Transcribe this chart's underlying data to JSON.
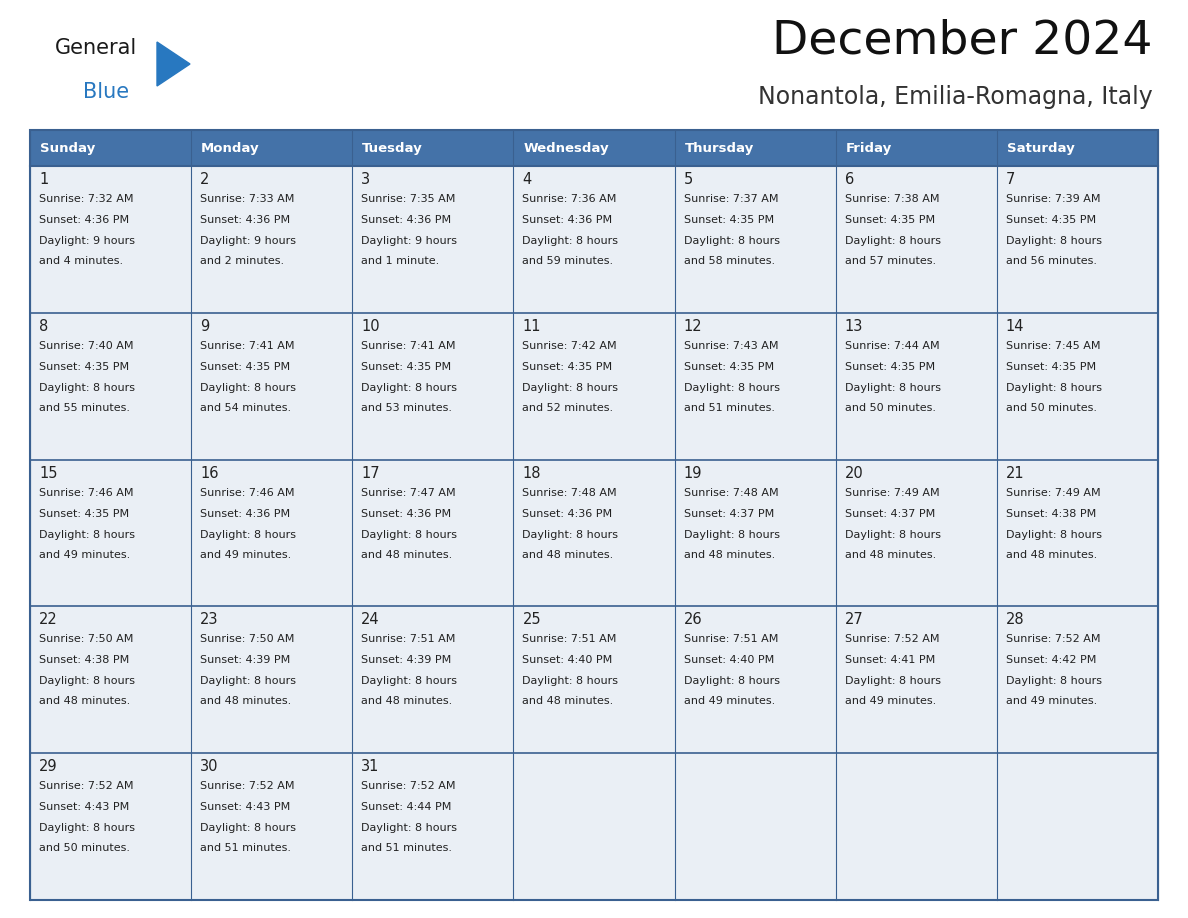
{
  "title": "December 2024",
  "subtitle": "Nonantola, Emilia-Romagna, Italy",
  "header_color": "#4472a8",
  "header_text_color": "#ffffff",
  "cell_bg_color": "#eaeff5",
  "border_color": "#3a6090",
  "text_color": "#222222",
  "days_of_week": [
    "Sunday",
    "Monday",
    "Tuesday",
    "Wednesday",
    "Thursday",
    "Friday",
    "Saturday"
  ],
  "weeks": [
    [
      {
        "day": "1",
        "sunrise": "7:32 AM",
        "sunset": "4:36 PM",
        "daylight1": "9 hours",
        "daylight2": "and 4 minutes."
      },
      {
        "day": "2",
        "sunrise": "7:33 AM",
        "sunset": "4:36 PM",
        "daylight1": "9 hours",
        "daylight2": "and 2 minutes."
      },
      {
        "day": "3",
        "sunrise": "7:35 AM",
        "sunset": "4:36 PM",
        "daylight1": "9 hours",
        "daylight2": "and 1 minute."
      },
      {
        "day": "4",
        "sunrise": "7:36 AM",
        "sunset": "4:36 PM",
        "daylight1": "8 hours",
        "daylight2": "and 59 minutes."
      },
      {
        "day": "5",
        "sunrise": "7:37 AM",
        "sunset": "4:35 PM",
        "daylight1": "8 hours",
        "daylight2": "and 58 minutes."
      },
      {
        "day": "6",
        "sunrise": "7:38 AM",
        "sunset": "4:35 PM",
        "daylight1": "8 hours",
        "daylight2": "and 57 minutes."
      },
      {
        "day": "7",
        "sunrise": "7:39 AM",
        "sunset": "4:35 PM",
        "daylight1": "8 hours",
        "daylight2": "and 56 minutes."
      }
    ],
    [
      {
        "day": "8",
        "sunrise": "7:40 AM",
        "sunset": "4:35 PM",
        "daylight1": "8 hours",
        "daylight2": "and 55 minutes."
      },
      {
        "day": "9",
        "sunrise": "7:41 AM",
        "sunset": "4:35 PM",
        "daylight1": "8 hours",
        "daylight2": "and 54 minutes."
      },
      {
        "day": "10",
        "sunrise": "7:41 AM",
        "sunset": "4:35 PM",
        "daylight1": "8 hours",
        "daylight2": "and 53 minutes."
      },
      {
        "day": "11",
        "sunrise": "7:42 AM",
        "sunset": "4:35 PM",
        "daylight1": "8 hours",
        "daylight2": "and 52 minutes."
      },
      {
        "day": "12",
        "sunrise": "7:43 AM",
        "sunset": "4:35 PM",
        "daylight1": "8 hours",
        "daylight2": "and 51 minutes."
      },
      {
        "day": "13",
        "sunrise": "7:44 AM",
        "sunset": "4:35 PM",
        "daylight1": "8 hours",
        "daylight2": "and 50 minutes."
      },
      {
        "day": "14",
        "sunrise": "7:45 AM",
        "sunset": "4:35 PM",
        "daylight1": "8 hours",
        "daylight2": "and 50 minutes."
      }
    ],
    [
      {
        "day": "15",
        "sunrise": "7:46 AM",
        "sunset": "4:35 PM",
        "daylight1": "8 hours",
        "daylight2": "and 49 minutes."
      },
      {
        "day": "16",
        "sunrise": "7:46 AM",
        "sunset": "4:36 PM",
        "daylight1": "8 hours",
        "daylight2": "and 49 minutes."
      },
      {
        "day": "17",
        "sunrise": "7:47 AM",
        "sunset": "4:36 PM",
        "daylight1": "8 hours",
        "daylight2": "and 48 minutes."
      },
      {
        "day": "18",
        "sunrise": "7:48 AM",
        "sunset": "4:36 PM",
        "daylight1": "8 hours",
        "daylight2": "and 48 minutes."
      },
      {
        "day": "19",
        "sunrise": "7:48 AM",
        "sunset": "4:37 PM",
        "daylight1": "8 hours",
        "daylight2": "and 48 minutes."
      },
      {
        "day": "20",
        "sunrise": "7:49 AM",
        "sunset": "4:37 PM",
        "daylight1": "8 hours",
        "daylight2": "and 48 minutes."
      },
      {
        "day": "21",
        "sunrise": "7:49 AM",
        "sunset": "4:38 PM",
        "daylight1": "8 hours",
        "daylight2": "and 48 minutes."
      }
    ],
    [
      {
        "day": "22",
        "sunrise": "7:50 AM",
        "sunset": "4:38 PM",
        "daylight1": "8 hours",
        "daylight2": "and 48 minutes."
      },
      {
        "day": "23",
        "sunrise": "7:50 AM",
        "sunset": "4:39 PM",
        "daylight1": "8 hours",
        "daylight2": "and 48 minutes."
      },
      {
        "day": "24",
        "sunrise": "7:51 AM",
        "sunset": "4:39 PM",
        "daylight1": "8 hours",
        "daylight2": "and 48 minutes."
      },
      {
        "day": "25",
        "sunrise": "7:51 AM",
        "sunset": "4:40 PM",
        "daylight1": "8 hours",
        "daylight2": "and 48 minutes."
      },
      {
        "day": "26",
        "sunrise": "7:51 AM",
        "sunset": "4:40 PM",
        "daylight1": "8 hours",
        "daylight2": "and 49 minutes."
      },
      {
        "day": "27",
        "sunrise": "7:52 AM",
        "sunset": "4:41 PM",
        "daylight1": "8 hours",
        "daylight2": "and 49 minutes."
      },
      {
        "day": "28",
        "sunrise": "7:52 AM",
        "sunset": "4:42 PM",
        "daylight1": "8 hours",
        "daylight2": "and 49 minutes."
      }
    ],
    [
      {
        "day": "29",
        "sunrise": "7:52 AM",
        "sunset": "4:43 PM",
        "daylight1": "8 hours",
        "daylight2": "and 50 minutes."
      },
      {
        "day": "30",
        "sunrise": "7:52 AM",
        "sunset": "4:43 PM",
        "daylight1": "8 hours",
        "daylight2": "and 51 minutes."
      },
      {
        "day": "31",
        "sunrise": "7:52 AM",
        "sunset": "4:44 PM",
        "daylight1": "8 hours",
        "daylight2": "and 51 minutes."
      },
      null,
      null,
      null,
      null
    ]
  ],
  "fig_width": 11.88,
  "fig_height": 9.18,
  "dpi": 100
}
